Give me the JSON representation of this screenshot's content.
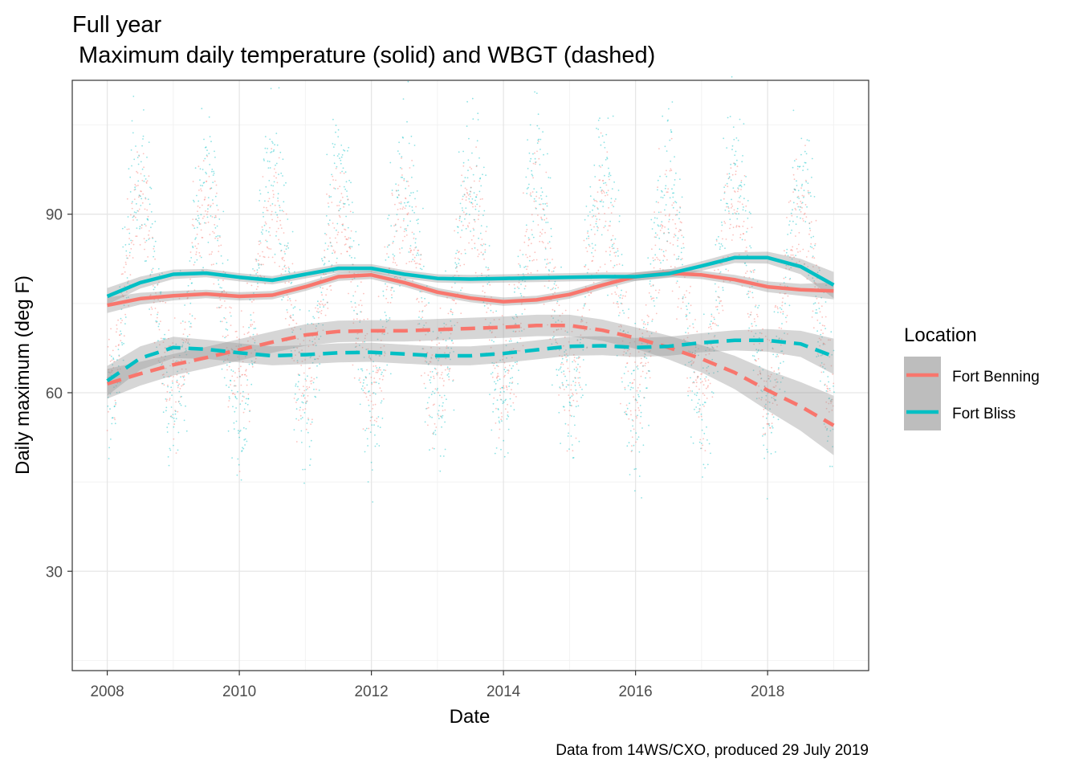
{
  "chart_data": {
    "type": "scatter",
    "title": "Full year",
    "subtitle": " Maximum daily temperature (solid) and WBGT (dashed)",
    "xlabel": "Date",
    "ylabel": "Daily maximum (deg F)",
    "caption": "Data from 14WS/CXO, produced 29 July 2019",
    "xlim": [
      2007.47,
      2019.53
    ],
    "ylim": [
      13.3,
      112.5
    ],
    "x_ticks": [
      2008,
      2010,
      2012,
      2014,
      2016,
      2018
    ],
    "x_tick_labels": [
      "2008",
      "2010",
      "2012",
      "2014",
      "2016",
      "2018"
    ],
    "x_minor_ticks": [
      2009,
      2011,
      2013,
      2015,
      2017,
      2019
    ],
    "y_ticks": [
      30,
      60,
      90
    ],
    "y_tick_labels": [
      "30",
      "60",
      "90"
    ],
    "y_minor_ticks": [
      15,
      45,
      75,
      105
    ],
    "grid": true,
    "legend": {
      "title": "Location",
      "position": "right",
      "entries": [
        {
          "label": "Fort Benning",
          "color": "#F8766D"
        },
        {
          "label": "Fort Bliss",
          "color": "#00BFC4"
        }
      ]
    },
    "colors": {
      "fort_benning": "#F8766D",
      "fort_bliss": "#00BFC4",
      "ribbon": "#999999"
    },
    "series": [
      {
        "name": "Fort Benning",
        "line": "solid",
        "x": [
          2008,
          2008.5,
          2009,
          2009.5,
          2010,
          2010.5,
          2011,
          2011.5,
          2012,
          2012.5,
          2013,
          2013.5,
          2014,
          2014.5,
          2015,
          2015.5,
          2016,
          2016.5,
          2017,
          2017.5,
          2018,
          2018.5,
          2019
        ],
        "y": [
          74.7,
          75.8,
          76.3,
          76.6,
          76.2,
          76.4,
          77.8,
          79.5,
          79.8,
          78.5,
          76.9,
          75.9,
          75.3,
          75.6,
          76.5,
          78.1,
          79.5,
          80.1,
          79.8,
          79.0,
          77.8,
          77.3,
          77.1
        ],
        "band": [
          1.3,
          1.0,
          0.8,
          0.7,
          0.7,
          0.7,
          0.7,
          0.7,
          0.7,
          0.7,
          0.7,
          0.7,
          0.7,
          0.7,
          0.7,
          0.7,
          0.7,
          0.7,
          0.7,
          0.8,
          0.9,
          1.0,
          1.4
        ]
      },
      {
        "name": "Fort Bliss",
        "line": "solid",
        "x": [
          2008,
          2008.5,
          2009,
          2009.5,
          2010,
          2010.5,
          2011,
          2011.5,
          2012,
          2012.5,
          2013,
          2013.5,
          2014,
          2014.5,
          2015,
          2015.5,
          2016,
          2016.5,
          2017,
          2017.5,
          2018,
          2018.5,
          2019
        ],
        "y": [
          76.2,
          78.5,
          79.9,
          80.1,
          79.4,
          78.9,
          79.9,
          80.9,
          80.9,
          79.9,
          79.2,
          79.1,
          79.2,
          79.3,
          79.4,
          79.5,
          79.5,
          80.0,
          81.3,
          82.7,
          82.7,
          81.2,
          78.1
        ],
        "band": [
          1.4,
          1.0,
          0.8,
          0.7,
          0.7,
          0.7,
          0.7,
          0.7,
          0.7,
          0.7,
          0.7,
          0.7,
          0.7,
          0.7,
          0.7,
          0.7,
          0.7,
          0.7,
          0.8,
          0.9,
          1.0,
          1.3,
          2.2
        ]
      },
      {
        "name": "Fort Benning",
        "line": "dashed",
        "x": [
          2008,
          2008.5,
          2009,
          2009.5,
          2010,
          2010.5,
          2011,
          2011.5,
          2012,
          2012.5,
          2013,
          2013.5,
          2014,
          2014.5,
          2015,
          2015.5,
          2016,
          2016.5,
          2017,
          2017.5,
          2018,
          2018.5,
          2019
        ],
        "y": [
          61.5,
          63.2,
          64.7,
          65.9,
          67.2,
          68.5,
          69.7,
          70.3,
          70.4,
          70.4,
          70.6,
          70.8,
          71.0,
          71.3,
          71.3,
          70.5,
          69.2,
          67.6,
          65.7,
          63.4,
          60.4,
          57.7,
          54.5
        ],
        "band": [
          2.5,
          2.0,
          1.8,
          1.8,
          1.8,
          1.8,
          1.8,
          1.8,
          1.8,
          1.8,
          1.8,
          1.8,
          1.8,
          1.8,
          1.8,
          1.8,
          1.8,
          2.0,
          2.3,
          2.8,
          3.4,
          4.1,
          5.0
        ]
      },
      {
        "name": "Fort Bliss",
        "line": "dashed",
        "x": [
          2008,
          2008.5,
          2009,
          2009.5,
          2010,
          2010.5,
          2011,
          2011.5,
          2012,
          2012.5,
          2013,
          2013.5,
          2014,
          2014.5,
          2015,
          2015.5,
          2016,
          2016.5,
          2017,
          2017.5,
          2018,
          2018.5,
          2019
        ],
        "y": [
          62.0,
          65.8,
          67.6,
          67.3,
          66.7,
          66.2,
          66.4,
          66.7,
          66.8,
          66.5,
          66.2,
          66.2,
          66.6,
          67.2,
          67.8,
          67.9,
          67.6,
          67.8,
          68.4,
          68.8,
          68.8,
          68.2,
          66.1
        ],
        "band": [
          2.5,
          2.0,
          1.8,
          1.6,
          1.6,
          1.6,
          1.6,
          1.6,
          1.6,
          1.6,
          1.6,
          1.6,
          1.6,
          1.6,
          1.6,
          1.6,
          1.6,
          1.6,
          1.6,
          1.7,
          1.9,
          2.2,
          3.0
        ]
      }
    ]
  }
}
